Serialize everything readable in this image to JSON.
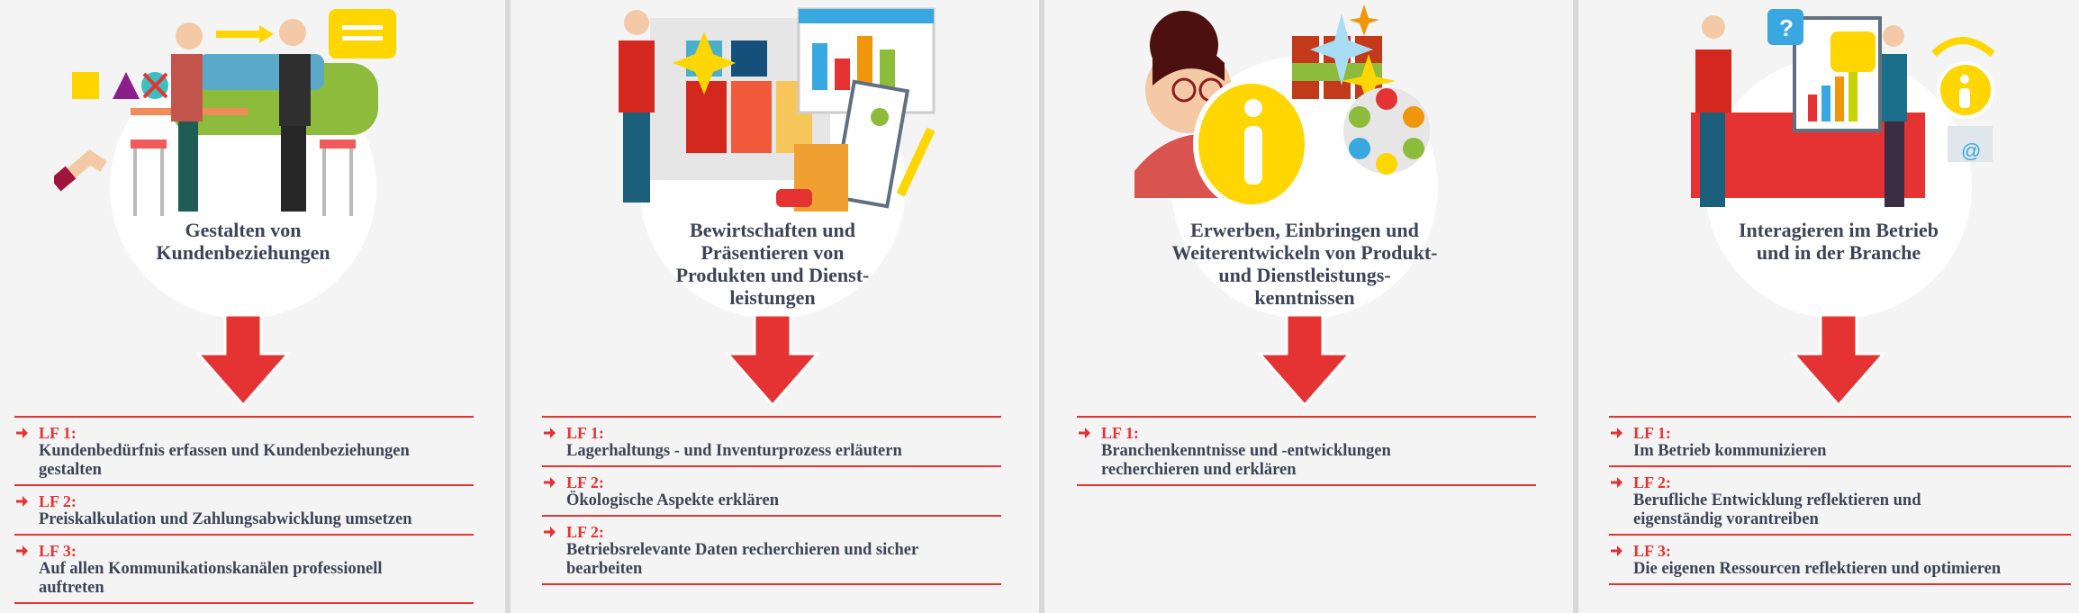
{
  "colors": {
    "accent": "#e53333",
    "text": "#3d4456",
    "background": "#f4f4f4"
  },
  "columns": [
    {
      "title_lines": [
        "Gestalten von",
        "Kundenbeziehungen"
      ],
      "icons": [
        "handshake-illustration",
        "speech-bubble-icon",
        "car-illustration"
      ],
      "items": [
        {
          "label": "LF 1:",
          "text": "Kundenbedürfnis erfassen und Kundenbeziehungen gestalten"
        },
        {
          "label": "LF 2:",
          "text": "Preiskalkulation und Zahlungsabwicklung umsetzen"
        },
        {
          "label": "LF 3:",
          "text": "Auf allen Kommunikationskanälen professionell auftreten"
        }
      ]
    },
    {
      "title_lines": [
        "Bewirtschaften und",
        "Präsentieren von",
        "Produkten und Dienst-",
        "leistungen"
      ],
      "icons": [
        "clothing-rack-illustration",
        "bar-chart-icon",
        "clipboard-icon",
        "box-icon"
      ],
      "items": [
        {
          "label": "LF 1:",
          "text": "Lagerhaltungs - und Inventurprozess erläutern"
        },
        {
          "label": "LF 2:",
          "text": "Ökologische Aspekte erklären"
        },
        {
          "label": "LF 2:",
          "text": "Betriebsrelevante Daten recherchieren und sicher bearbeiten"
        }
      ]
    },
    {
      "title_lines": [
        "Erwerben, Einbringen und",
        "Weiterentwickeln von Produkt-",
        "und Dienstleistungs-",
        "kenntnissen"
      ],
      "icons": [
        "woman-illustration",
        "info-icon",
        "jars-illustration",
        "network-icon"
      ],
      "items": [
        {
          "label": "LF 1:",
          "text": "Branchenkenntnisse und -entwicklungen recherchieren und erklären"
        }
      ]
    },
    {
      "title_lines": [
        "Interagieren im Betrieb",
        "und in der Branche"
      ],
      "icons": [
        "presentation-illustration",
        "question-bubble-icon",
        "info-icon",
        "email-icon"
      ],
      "items": [
        {
          "label": "LF 1:",
          "text": "Im Betrieb kommunizieren"
        },
        {
          "label": "LF 2:",
          "text": "Berufliche Entwicklung reflektieren und eigenständig vorantreiben"
        },
        {
          "label": "LF 3:",
          "text": "Die eigenen Ressourcen reflektieren und optimieren"
        }
      ]
    }
  ]
}
